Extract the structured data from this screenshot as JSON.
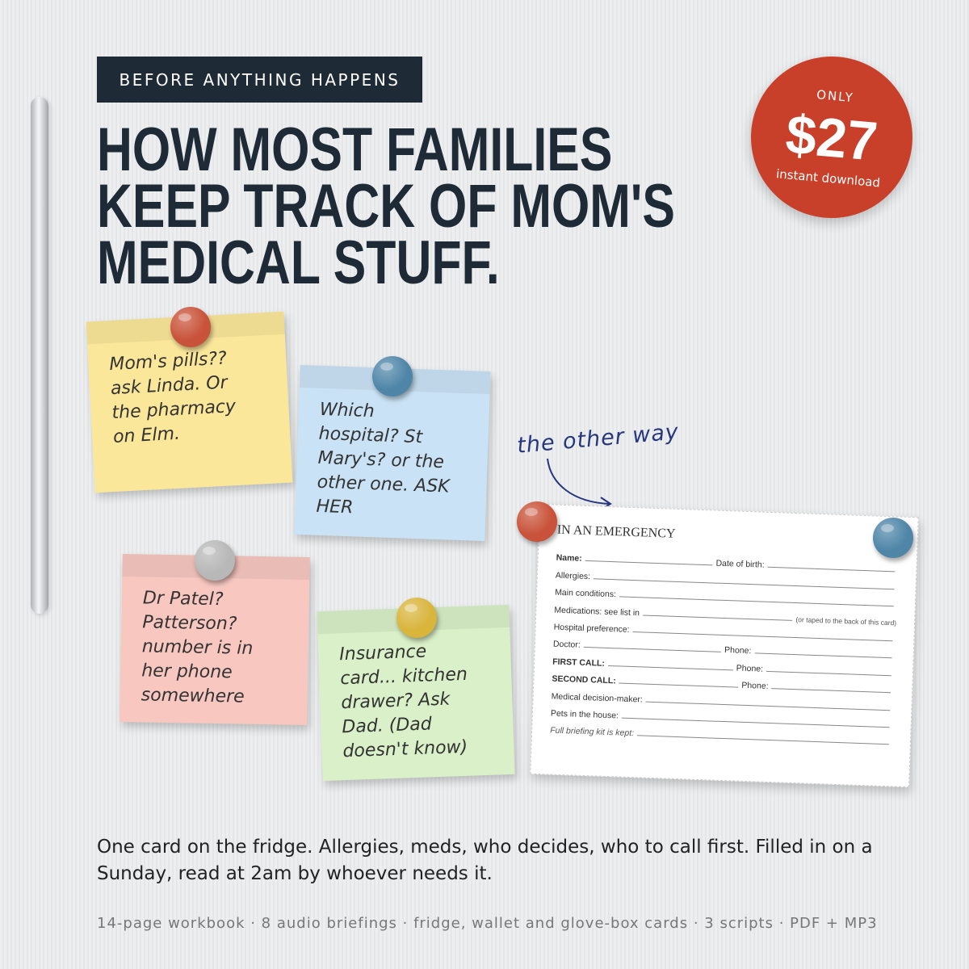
{
  "eyebrow": "BEFORE ANYTHING HAPPENS",
  "headline": [
    "HOW MOST FAMILIES",
    "KEEP TRACK OF MOM'S",
    "MEDICAL STUFF."
  ],
  "badge": {
    "top": "ONLY",
    "price": "$27",
    "bottom": "instant download"
  },
  "notes": [
    {
      "color": "#fbe79a",
      "pin": "#c9533a",
      "lines": [
        "Mom's pills??",
        "ask Linda. Or",
        "the pharmacy",
        "on Elm."
      ]
    },
    {
      "color": "#c9e2f5",
      "pin": "#4f86a8",
      "lines": [
        "Which",
        "hospital? St",
        "Mary's? or the",
        "other one. ASK",
        "HER"
      ]
    },
    {
      "color": "#f7c7c0",
      "pin": "#b8b8b8",
      "lines": [
        "Dr Patel?",
        "Patterson?",
        "number is in",
        "her phone",
        "somewhere"
      ]
    },
    {
      "color": "#d9f0c8",
      "pin": "#d9b53c",
      "lines": [
        "Insurance",
        "card... kitchen",
        "drawer? Ask",
        "Dad. (Dad",
        "doesn't know)"
      ]
    }
  ],
  "annotation": "the other way",
  "card": {
    "title": "IN AN EMERGENCY",
    "rows": [
      {
        "label": "Name:",
        "extra": "Date of birth:",
        "style": "bold"
      },
      {
        "label": "Allergies:"
      },
      {
        "label": "Main conditions:"
      },
      {
        "label": "Medications: see list in",
        "note": "(or taped to the back of this card)"
      },
      {
        "label": "Hospital preference:"
      },
      {
        "label": "Doctor:",
        "extra": "Phone:"
      },
      {
        "label": "FIRST CALL:",
        "extra": "Phone:",
        "style": "bold"
      },
      {
        "label": "SECOND CALL:",
        "extra": "Phone:",
        "style": "bold"
      },
      {
        "label": "Medical decision-maker:"
      },
      {
        "label": "Pets in the house:"
      },
      {
        "label": "Full briefing kit is kept:",
        "style": "italic"
      }
    ]
  },
  "body": "One card on the fridge. Allergies, meds, who decides, who to call first. Filled in on a Sunday, read at 2am by whoever needs it.",
  "footer": "14-page workbook · 8 audio briefings · fridge, wallet and glove-box cards · 3 scripts · PDF + MP3"
}
